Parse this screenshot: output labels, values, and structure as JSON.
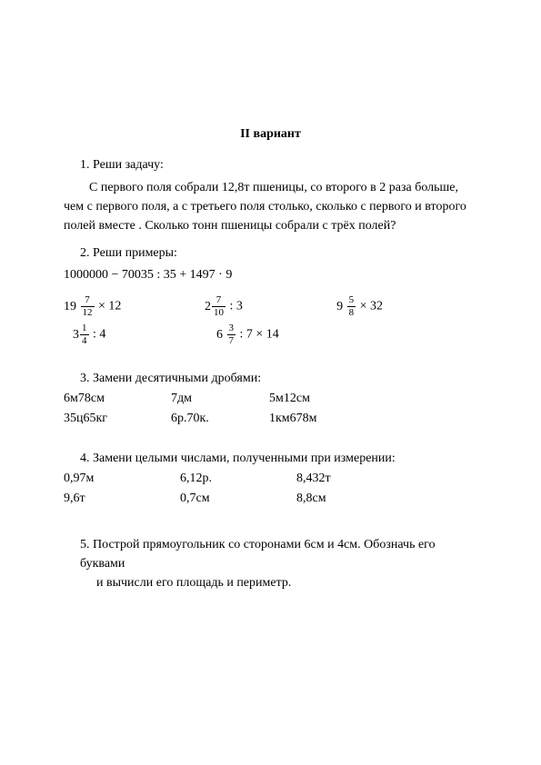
{
  "title": "II вариант",
  "task1": {
    "heading": "1.  Реши задачу:",
    "text": "С первого поля собрали 12,8т пшеницы, со второго в 2 раза больше, чем с первого поля, а с третьего поля столько, сколько с первого и второго полей вместе . Сколько тонн пшеницы собрали с трёх полей?"
  },
  "task2": {
    "heading": "2.  Реши примеры:",
    "expr_main": "1000000 − 70035 : 35 + 1497 · 9",
    "row_a": {
      "c1": {
        "int": "19",
        "num": "7",
        "den": "12",
        "tail": "  × 12"
      },
      "c2": {
        "int": "2",
        "num": "7",
        "den": "10",
        "tail": "  : 3"
      },
      "c3": {
        "int": "9",
        "num": "5",
        "den": "8",
        "tail": "  × 32"
      }
    },
    "row_b": {
      "c1": {
        "int": "3",
        "num": "1",
        "den": "4",
        "tail": "  : 4"
      },
      "c2": {
        "int": "6",
        "num": "3",
        "den": "7",
        "tail": "  : 7 × 14"
      }
    }
  },
  "task3": {
    "heading": "3.  Замени десятичными дробями:",
    "r1": {
      "c1": "6м78см",
      "c2": "7дм",
      "c3": "5м12см"
    },
    "r2": {
      "c1": "35ц65кг",
      "c2": "6р.70к.",
      "c3": "1км678м"
    }
  },
  "task4": {
    "heading": "4.  Замени целыми числами, полученными при измерении:",
    "r1": {
      "c1": "0,97м",
      "c2": "6,12р.",
      "c3": "8,432т"
    },
    "r2": {
      "c1": "9,6т",
      "c2": "0,7см",
      "c3": "8,8см"
    }
  },
  "task5": {
    "line1": "5.  Построй прямоугольник со сторонами 6см и 4см. Обозначь его буквами",
    "line2": "и вычисли его площадь и периметр."
  }
}
